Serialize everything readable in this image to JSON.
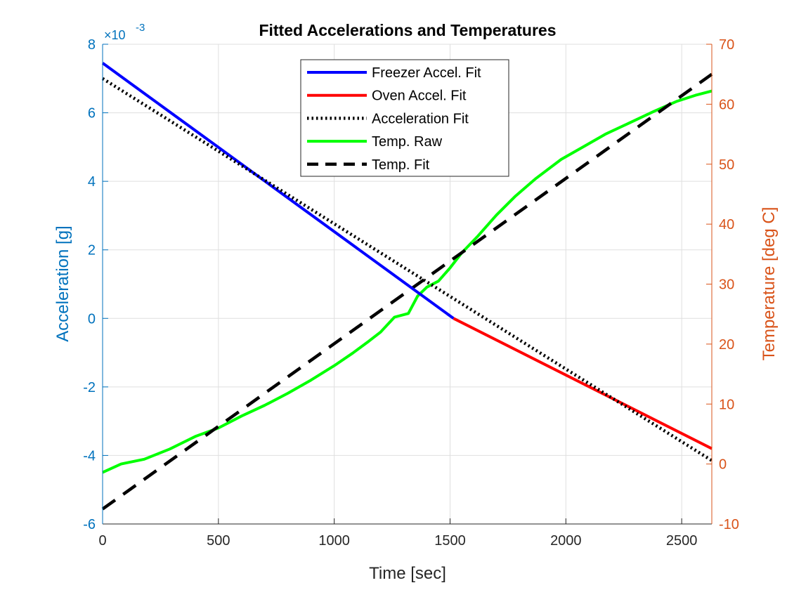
{
  "chart_data": {
    "type": "line",
    "title": "Fitted Accelerations and Temperatures",
    "xlabel": "Time [sec]",
    "ylabel_left": "Acceleration [g]",
    "ylabel_right": "Temperature [deg C]",
    "left_axis_multiplier": "×10",
    "left_axis_exponent": "-3",
    "xlim": [
      0,
      2630
    ],
    "ylim_left": [
      -6,
      8
    ],
    "ylim_right": [
      -10,
      70
    ],
    "x_ticks": [
      "0",
      "500",
      "1000",
      "1500",
      "2000",
      "2500"
    ],
    "left_ticks": [
      "-6",
      "-4",
      "-2",
      "0",
      "2",
      "4",
      "6",
      "8"
    ],
    "right_ticks": [
      "-10",
      "0",
      "10",
      "20",
      "30",
      "40",
      "50",
      "60",
      "70"
    ],
    "grid": true,
    "legend_position": "top-center",
    "colors": {
      "left_axis": "#0072BD",
      "right_axis": "#D95319",
      "freezer": "#0000FF",
      "oven": "#FF0000",
      "accel_fit": "#000000",
      "temp_raw": "#00FF00",
      "temp_fit": "#000000"
    },
    "series": [
      {
        "name": "Freezer Accel. Fit",
        "axis": "left",
        "style": "solid",
        "x": [
          0,
          1515
        ],
        "y": [
          7.45,
          0.0
        ]
      },
      {
        "name": "Oven Accel. Fit",
        "axis": "left",
        "style": "solid",
        "x": [
          1515,
          2630
        ],
        "y": [
          0.0,
          -3.8
        ]
      },
      {
        "name": "Acceleration Fit",
        "axis": "left",
        "style": "dotted",
        "x": [
          0,
          2630
        ],
        "y": [
          7.0,
          -4.15
        ]
      },
      {
        "name": "Temp. Raw",
        "axis": "right",
        "style": "solid",
        "x": [
          0,
          80,
          180,
          290,
          400,
          500,
          600,
          700,
          800,
          900,
          1000,
          1080,
          1150,
          1200,
          1260,
          1320,
          1360,
          1400,
          1450,
          1500,
          1550,
          1620,
          1700,
          1780,
          1870,
          1980,
          2080,
          2170,
          2270,
          2380,
          2480,
          2560,
          2630
        ],
        "y": [
          -1.4,
          0.0,
          0.8,
          2.5,
          4.6,
          6.0,
          8.0,
          9.8,
          11.8,
          14.0,
          16.4,
          18.5,
          20.5,
          22.0,
          24.5,
          25.1,
          28.0,
          29.5,
          30.5,
          32.7,
          35.2,
          38.0,
          41.5,
          44.6,
          47.6,
          50.8,
          53.0,
          55.0,
          56.8,
          58.8,
          60.5,
          61.5,
          62.2
        ]
      },
      {
        "name": "Temp. Fit",
        "axis": "right",
        "style": "dashed",
        "x": [
          0,
          2630
        ],
        "y": [
          -7.5,
          65.0
        ]
      }
    ]
  }
}
